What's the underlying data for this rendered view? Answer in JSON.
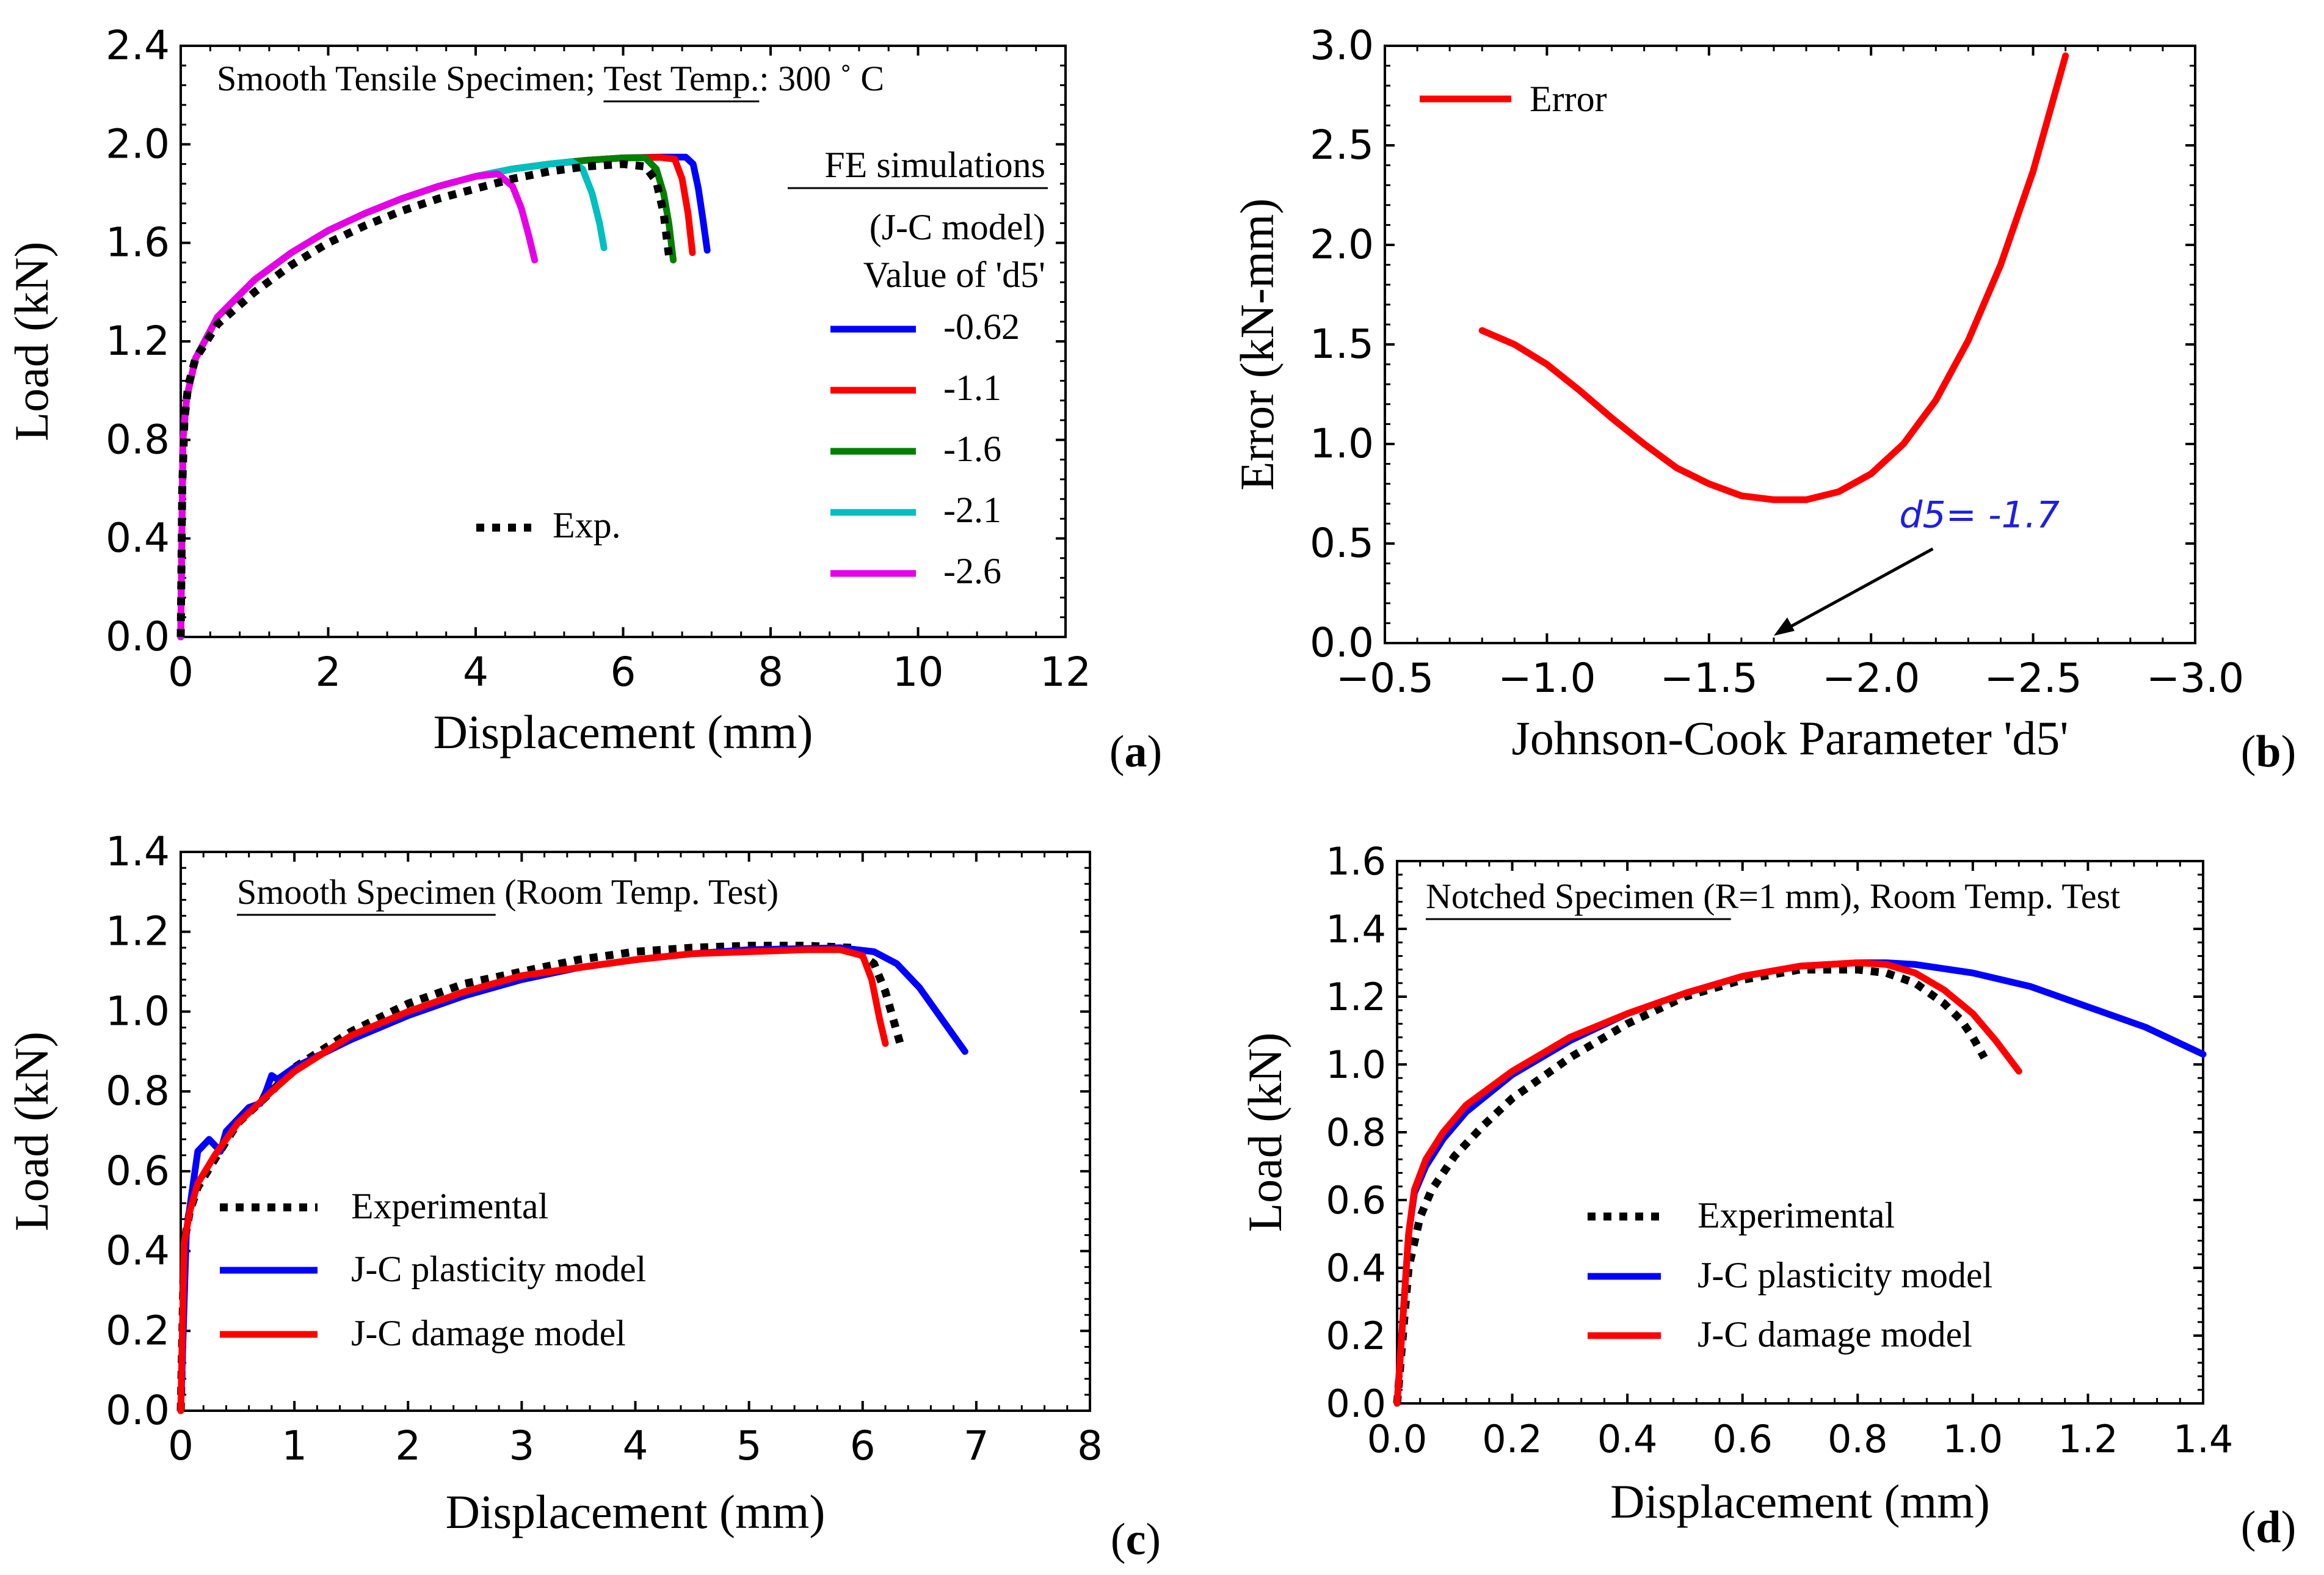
{
  "figure_title": "",
  "chart_data": [
    {
      "id": "a",
      "type": "line",
      "panel_label": "a",
      "title": "Smooth Tensile Specimen; Test Temp.: 300 ˚ C",
      "title_parts": [
        "Smooth Tensile Specimen; ",
        "Test Temp.",
        ": 300 ˚ C"
      ],
      "xlabel": "Displacement (mm)",
      "ylabel": "Load (kN)",
      "xlim": [
        0,
        12
      ],
      "ylim": [
        0,
        2.4
      ],
      "xticks": [
        0,
        2,
        4,
        6,
        8,
        10,
        12
      ],
      "yticks": [
        0.0,
        0.4,
        0.8,
        1.2,
        1.6,
        2.0,
        2.4
      ],
      "xtick_labels": [
        "0",
        "2",
        "4",
        "6",
        "8",
        "10",
        "12"
      ],
      "ytick_labels": [
        "0.0",
        "0.4",
        "0.8",
        "1.2",
        "1.6",
        "2.0",
        "2.4"
      ],
      "legend_title_lines": [
        "FE simulations",
        "(J-C model)",
        "Value of 'd5'"
      ],
      "series": [
        {
          "name": "-0.62",
          "color": "#0000ff",
          "style": "solid",
          "x": [
            0.0,
            0.03,
            0.08,
            0.2,
            0.5,
            1.0,
            1.5,
            2.0,
            2.5,
            3.0,
            3.5,
            4.0,
            4.5,
            5.0,
            5.5,
            6.0,
            6.5,
            6.85,
            6.95,
            7.02,
            7.08,
            7.14
          ],
          "y": [
            0.0,
            0.8,
            0.97,
            1.13,
            1.3,
            1.45,
            1.56,
            1.65,
            1.72,
            1.78,
            1.83,
            1.87,
            1.9,
            1.92,
            1.935,
            1.945,
            1.948,
            1.948,
            1.92,
            1.82,
            1.7,
            1.57
          ]
        },
        {
          "name": "-1.1",
          "color": "#ff0000",
          "style": "solid",
          "x": [
            0.0,
            0.03,
            0.08,
            0.2,
            0.5,
            1.0,
            1.5,
            2.0,
            2.5,
            3.0,
            3.5,
            4.0,
            4.5,
            5.0,
            5.5,
            6.0,
            6.5,
            6.7,
            6.8,
            6.88,
            6.94
          ],
          "y": [
            0.0,
            0.8,
            0.97,
            1.13,
            1.3,
            1.45,
            1.56,
            1.65,
            1.72,
            1.78,
            1.83,
            1.87,
            1.9,
            1.92,
            1.935,
            1.945,
            1.947,
            1.94,
            1.86,
            1.72,
            1.56
          ]
        },
        {
          "name": "-1.6",
          "color": "#008000",
          "style": "solid",
          "x": [
            0.0,
            0.03,
            0.08,
            0.2,
            0.5,
            1.0,
            1.5,
            2.0,
            2.5,
            3.0,
            3.5,
            4.0,
            4.5,
            5.0,
            5.5,
            6.0,
            6.3,
            6.45,
            6.55,
            6.62,
            6.68
          ],
          "y": [
            0.0,
            0.8,
            0.97,
            1.13,
            1.3,
            1.45,
            1.56,
            1.65,
            1.72,
            1.78,
            1.83,
            1.87,
            1.9,
            1.92,
            1.935,
            1.945,
            1.945,
            1.9,
            1.8,
            1.68,
            1.53
          ]
        },
        {
          "name": "-2.1",
          "color": "#00bfbf",
          "style": "solid",
          "x": [
            0.0,
            0.03,
            0.08,
            0.2,
            0.5,
            1.0,
            1.5,
            2.0,
            2.5,
            3.0,
            3.5,
            4.0,
            4.5,
            5.0,
            5.3,
            5.45,
            5.58,
            5.68,
            5.74
          ],
          "y": [
            0.0,
            0.8,
            0.97,
            1.13,
            1.3,
            1.45,
            1.56,
            1.65,
            1.72,
            1.78,
            1.83,
            1.87,
            1.9,
            1.92,
            1.93,
            1.9,
            1.8,
            1.68,
            1.58
          ]
        },
        {
          "name": "-2.6",
          "color": "#e600e6",
          "style": "solid",
          "x": [
            0.0,
            0.03,
            0.08,
            0.2,
            0.5,
            1.0,
            1.5,
            2.0,
            2.5,
            3.0,
            3.5,
            4.0,
            4.3,
            4.5,
            4.62,
            4.72,
            4.8
          ],
          "y": [
            0.0,
            0.8,
            0.97,
            1.13,
            1.3,
            1.45,
            1.56,
            1.65,
            1.72,
            1.78,
            1.83,
            1.87,
            1.88,
            1.83,
            1.74,
            1.63,
            1.53
          ]
        },
        {
          "name": "Exp.",
          "color": "#000000",
          "style": "dotted",
          "x": [
            0.0,
            0.02,
            0.05,
            0.1,
            0.2,
            0.5,
            1.0,
            1.5,
            2.0,
            2.5,
            3.0,
            3.5,
            4.0,
            4.5,
            5.0,
            5.5,
            6.0,
            6.3,
            6.45,
            6.55,
            6.62
          ],
          "y": [
            0.0,
            0.6,
            0.88,
            1.02,
            1.13,
            1.27,
            1.4,
            1.51,
            1.6,
            1.67,
            1.73,
            1.78,
            1.82,
            1.86,
            1.89,
            1.91,
            1.92,
            1.91,
            1.85,
            1.72,
            1.55
          ]
        }
      ]
    },
    {
      "id": "b",
      "type": "line",
      "panel_label": "b",
      "title": "",
      "xlabel": "Johnson-Cook Parameter 'd5'",
      "ylabel": "Error (kN-mm)",
      "xlim": [
        -0.5,
        -3.0
      ],
      "ylim": [
        0.0,
        3.0
      ],
      "xticks": [
        -0.5,
        -1.0,
        -1.5,
        -2.0,
        -2.5,
        -3.0
      ],
      "yticks": [
        0.0,
        0.5,
        1.0,
        1.5,
        2.0,
        2.5,
        3.0
      ],
      "xtick_labels": [
        "−0.5",
        "−1.0",
        "−1.5",
        "−2.0",
        "−2.5",
        "−3.0"
      ],
      "ytick_labels": [
        "0.0",
        "0.5",
        "1.0",
        "1.5",
        "2.0",
        "2.5",
        "3.0"
      ],
      "series": [
        {
          "name": "Error",
          "color": "#ff0000",
          "style": "solid",
          "x": [
            -0.8,
            -0.9,
            -1.0,
            -1.1,
            -1.2,
            -1.3,
            -1.4,
            -1.5,
            -1.6,
            -1.7,
            -1.8,
            -1.9,
            -2.0,
            -2.1,
            -2.2,
            -2.3,
            -2.4,
            -2.5,
            -2.6
          ],
          "y": [
            1.57,
            1.5,
            1.4,
            1.27,
            1.13,
            1.0,
            0.88,
            0.8,
            0.74,
            0.72,
            0.72,
            0.76,
            0.85,
            1.0,
            1.22,
            1.52,
            1.9,
            2.37,
            2.95
          ]
        }
      ],
      "annotation": {
        "text": "d5= -1.7",
        "x": -1.7,
        "y": 0.0,
        "text_x": -2.2,
        "text_y": 0.55
      }
    },
    {
      "id": "c",
      "type": "line",
      "panel_label": "c",
      "title": "Smooth Specimen (Room Temp. Test)",
      "title_parts": [
        "Smooth Specimen",
        " (Room Temp. Test)"
      ],
      "xlabel": "Displacement (mm)",
      "ylabel": "Load (kN)",
      "xlim": [
        0,
        8
      ],
      "ylim": [
        0,
        1.4
      ],
      "xticks": [
        0,
        1,
        2,
        3,
        4,
        5,
        6,
        7,
        8
      ],
      "yticks": [
        0.0,
        0.2,
        0.4,
        0.6,
        0.8,
        1.0,
        1.2,
        1.4
      ],
      "xtick_labels": [
        "0",
        "1",
        "2",
        "3",
        "4",
        "5",
        "6",
        "7",
        "8"
      ],
      "ytick_labels": [
        "0.0",
        "0.2",
        "0.4",
        "0.6",
        "0.8",
        "1.0",
        "1.2",
        "1.4"
      ],
      "series": [
        {
          "name": "Experimental",
          "color": "#000000",
          "style": "dotted",
          "x": [
            0.0,
            0.03,
            0.08,
            0.15,
            0.3,
            0.5,
            0.8,
            1.0,
            1.5,
            2.0,
            2.5,
            3.0,
            3.5,
            4.0,
            4.5,
            5.0,
            5.5,
            5.9,
            6.1,
            6.2,
            6.28,
            6.33
          ],
          "y": [
            0.0,
            0.42,
            0.5,
            0.56,
            0.63,
            0.72,
            0.8,
            0.86,
            0.95,
            1.02,
            1.07,
            1.1,
            1.13,
            1.15,
            1.16,
            1.165,
            1.165,
            1.16,
            1.12,
            1.05,
            0.97,
            0.92
          ]
        },
        {
          "name": "J-C plasticity model",
          "color": "#0000ff",
          "style": "solid",
          "x": [
            0.0,
            0.05,
            0.1,
            0.15,
            0.25,
            0.35,
            0.4,
            0.5,
            0.6,
            0.7,
            0.75,
            0.8,
            0.85,
            1.0,
            1.5,
            2.0,
            2.5,
            3.0,
            3.5,
            4.0,
            4.5,
            5.0,
            5.5,
            5.8,
            6.1,
            6.3,
            6.5,
            6.7,
            6.9
          ],
          "y": [
            0.0,
            0.45,
            0.55,
            0.65,
            0.68,
            0.65,
            0.7,
            0.73,
            0.76,
            0.77,
            0.8,
            0.84,
            0.83,
            0.86,
            0.93,
            0.99,
            1.04,
            1.08,
            1.11,
            1.13,
            1.145,
            1.155,
            1.158,
            1.16,
            1.15,
            1.12,
            1.06,
            0.98,
            0.9
          ]
        },
        {
          "name": "J-C damage model",
          "color": "#ff0000",
          "style": "solid",
          "x": [
            0.0,
            0.03,
            0.08,
            0.15,
            0.3,
            0.5,
            0.8,
            1.0,
            1.5,
            2.0,
            2.5,
            3.0,
            3.5,
            4.0,
            4.5,
            5.0,
            5.5,
            5.8,
            6.0,
            6.08,
            6.15,
            6.2
          ],
          "y": [
            0.0,
            0.42,
            0.5,
            0.57,
            0.64,
            0.72,
            0.8,
            0.85,
            0.94,
            1.0,
            1.05,
            1.09,
            1.11,
            1.13,
            1.145,
            1.15,
            1.155,
            1.155,
            1.14,
            1.08,
            0.98,
            0.92
          ]
        }
      ]
    },
    {
      "id": "d",
      "type": "line",
      "panel_label": "d",
      "title": "Notched Specimen (R=1 mm), Room Temp. Test",
      "title_parts": [
        "Notched Specimen",
        " (R=1 mm), Room Temp. Test"
      ],
      "xlabel": "Displacement (mm)",
      "ylabel": "Load (kN)",
      "xlim": [
        0,
        1.4
      ],
      "ylim": [
        0,
        1.6
      ],
      "xticks": [
        0.0,
        0.2,
        0.4,
        0.6,
        0.8,
        1.0,
        1.2,
        1.4
      ],
      "yticks": [
        0.0,
        0.2,
        0.4,
        0.6,
        0.8,
        1.0,
        1.2,
        1.4,
        1.6
      ],
      "xtick_labels": [
        "0.0",
        "0.2",
        "0.4",
        "0.6",
        "0.8",
        "1.0",
        "1.2",
        "1.4"
      ],
      "ytick_labels": [
        "0.0",
        "0.2",
        "0.4",
        "0.6",
        "0.8",
        "1.0",
        "1.2",
        "1.4",
        "1.6"
      ],
      "series": [
        {
          "name": "Experimental",
          "color": "#000000",
          "style": "dotted",
          "x": [
            0.0,
            0.02,
            0.04,
            0.06,
            0.1,
            0.15,
            0.2,
            0.3,
            0.4,
            0.5,
            0.6,
            0.7,
            0.8,
            0.85,
            0.9,
            0.95,
            0.98,
            1.0,
            1.02
          ],
          "y": [
            0.0,
            0.4,
            0.55,
            0.63,
            0.73,
            0.82,
            0.9,
            1.02,
            1.12,
            1.2,
            1.25,
            1.28,
            1.28,
            1.27,
            1.24,
            1.18,
            1.13,
            1.08,
            1.02
          ]
        },
        {
          "name": "J-C plasticity model",
          "color": "#0000ff",
          "style": "solid",
          "x": [
            0.0,
            0.02,
            0.03,
            0.05,
            0.08,
            0.12,
            0.2,
            0.3,
            0.4,
            0.5,
            0.6,
            0.7,
            0.8,
            0.85,
            0.9,
            1.0,
            1.1,
            1.2,
            1.3,
            1.4
          ],
          "y": [
            0.0,
            0.5,
            0.62,
            0.7,
            0.78,
            0.86,
            0.97,
            1.07,
            1.15,
            1.21,
            1.26,
            1.29,
            1.3,
            1.3,
            1.295,
            1.27,
            1.23,
            1.17,
            1.11,
            1.03
          ]
        },
        {
          "name": "J-C damage model",
          "color": "#ff0000",
          "style": "solid",
          "x": [
            0.0,
            0.02,
            0.03,
            0.05,
            0.08,
            0.12,
            0.2,
            0.3,
            0.4,
            0.5,
            0.6,
            0.7,
            0.8,
            0.85,
            0.9,
            0.95,
            1.0,
            1.04,
            1.08
          ],
          "y": [
            0.0,
            0.5,
            0.63,
            0.72,
            0.8,
            0.88,
            0.98,
            1.08,
            1.15,
            1.21,
            1.26,
            1.29,
            1.3,
            1.295,
            1.27,
            1.22,
            1.15,
            1.07,
            0.98
          ]
        }
      ]
    }
  ]
}
